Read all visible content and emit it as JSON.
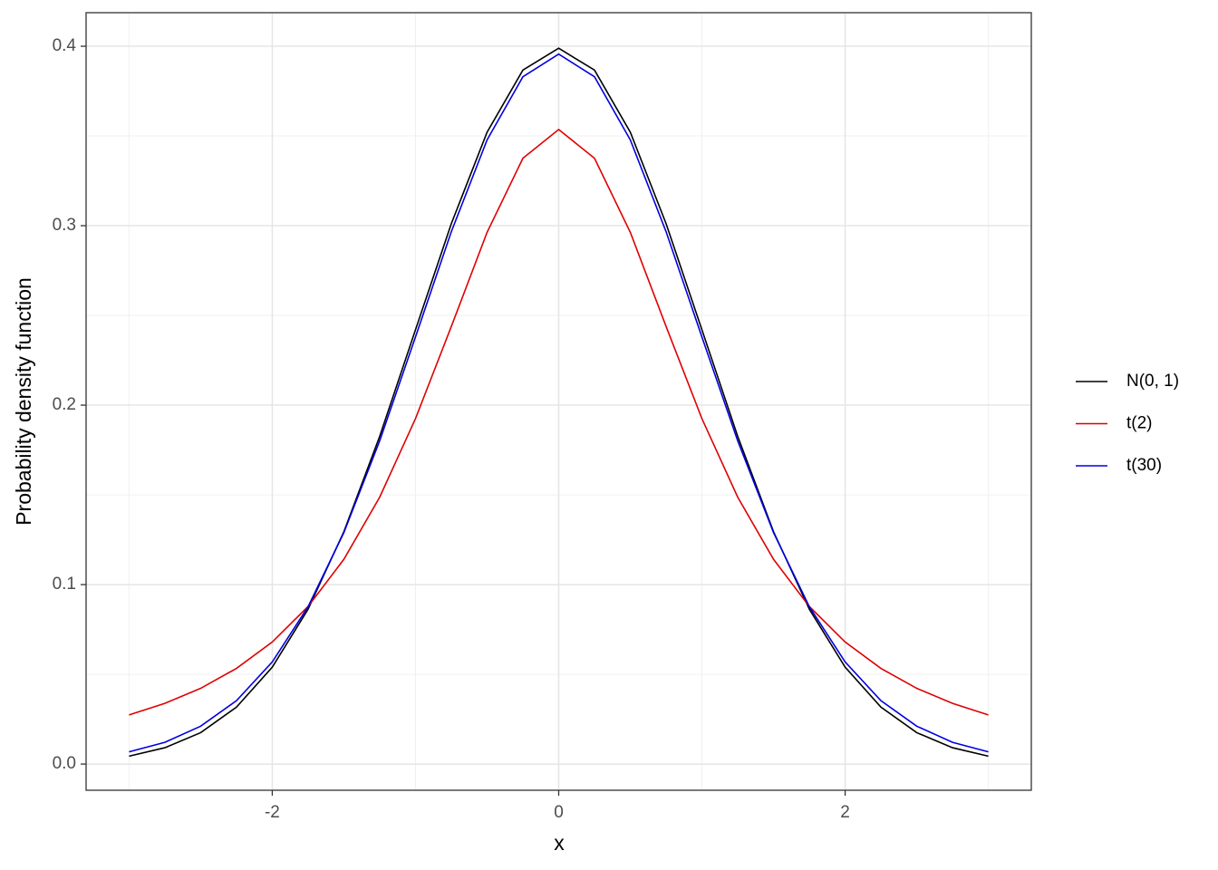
{
  "chart_data": {
    "type": "line",
    "xlabel": "x",
    "ylabel": "Probability density function",
    "x": [
      -3,
      -2.75,
      -2.5,
      -2.25,
      -2,
      -1.75,
      -1.5,
      -1.25,
      -1,
      -0.75,
      -0.5,
      -0.25,
      0,
      0.25,
      0.5,
      0.75,
      1,
      1.25,
      1.5,
      1.75,
      2,
      2.25,
      2.5,
      2.75,
      3
    ],
    "series": [
      {
        "name": "N(0, 1)",
        "color": "#000000",
        "values": [
          0.0044,
          0.0091,
          0.0175,
          0.0317,
          0.054,
          0.0863,
          0.1295,
          0.1826,
          0.242,
          0.3011,
          0.3521,
          0.3867,
          0.3989,
          0.3867,
          0.3521,
          0.3011,
          0.242,
          0.1826,
          0.1295,
          0.0863,
          0.054,
          0.0317,
          0.0175,
          0.0091,
          0.0044
        ]
      },
      {
        "name": "t(2)",
        "color": "#e00000",
        "values": [
          0.0274,
          0.0338,
          0.0422,
          0.0533,
          0.068,
          0.0878,
          0.1141,
          0.1487,
          0.1925,
          0.2438,
          0.2963,
          0.3376,
          0.3536,
          0.3376,
          0.2963,
          0.2438,
          0.1925,
          0.1487,
          0.1141,
          0.0878,
          0.068,
          0.0533,
          0.0422,
          0.0338,
          0.0274
        ]
      },
      {
        "name": "t(30)",
        "color": "#0000e0",
        "values": [
          0.0068,
          0.0121,
          0.0211,
          0.0353,
          0.0569,
          0.0877,
          0.129,
          0.1801,
          0.238,
          0.2966,
          0.3478,
          0.383,
          0.3956,
          0.383,
          0.3478,
          0.2966,
          0.238,
          0.1801,
          0.129,
          0.0877,
          0.0569,
          0.0353,
          0.0211,
          0.0121,
          0.0068
        ]
      }
    ],
    "xlim": [
      -3.3,
      3.3
    ],
    "ylim": [
      -0.0146,
      0.4187
    ],
    "xticks": [
      -2,
      0,
      2
    ],
    "yticks": [
      {
        "value": 0,
        "label": "0.0"
      },
      0.1,
      0.2,
      0.3,
      0.4
    ],
    "x_minor_ticks": [
      -3,
      -1,
      1,
      3
    ],
    "y_minor_ticks": [
      0.05,
      0.15,
      0.25,
      0.35
    ],
    "grid": true,
    "legend_position": "right"
  }
}
